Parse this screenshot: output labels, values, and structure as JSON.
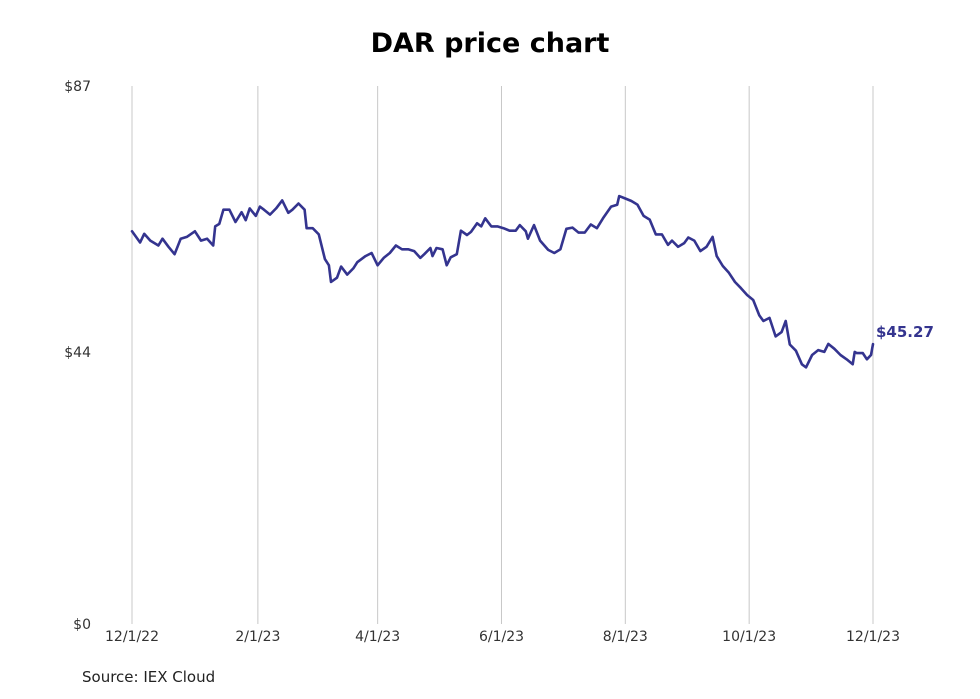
{
  "chart_data": {
    "type": "line",
    "title": "DAR price chart",
    "source": "Source: IEX Cloud",
    "y_ticks": [
      "$87",
      "$44",
      "$0"
    ],
    "y_tick_values": [
      87,
      44,
      0
    ],
    "ylim": [
      0,
      87
    ],
    "x_ticks": [
      "12/1/22",
      "2/1/23",
      "4/1/23",
      "6/1/23",
      "8/1/23",
      "10/1/23",
      "12/1/23"
    ],
    "x_tick_dates": [
      "2022-12-01",
      "2023-02-01",
      "2023-04-01",
      "2023-06-01",
      "2023-08-01",
      "2023-10-01",
      "2023-12-01"
    ],
    "grid": "vertical",
    "last_label": "$45.27",
    "line_color": "#34348f",
    "series": [
      {
        "points": [
          [
            "2022-12-01",
            63.5
          ],
          [
            "2022-12-05",
            61.7
          ],
          [
            "2022-12-07",
            63.1
          ],
          [
            "2022-12-10",
            62.0
          ],
          [
            "2022-12-14",
            61.2
          ],
          [
            "2022-12-16",
            62.3
          ],
          [
            "2022-12-19",
            61.0
          ],
          [
            "2022-12-22",
            59.8
          ],
          [
            "2022-12-25",
            62.3
          ],
          [
            "2022-12-28",
            62.6
          ],
          [
            "2023-01-01",
            63.5
          ],
          [
            "2023-01-04",
            62.0
          ],
          [
            "2023-01-07",
            62.3
          ],
          [
            "2023-01-10",
            61.2
          ],
          [
            "2023-01-11",
            64.3
          ],
          [
            "2023-01-13",
            64.7
          ],
          [
            "2023-01-15",
            67.0
          ],
          [
            "2023-01-18",
            67.0
          ],
          [
            "2023-01-21",
            65.0
          ],
          [
            "2023-01-24",
            66.6
          ],
          [
            "2023-01-26",
            65.3
          ],
          [
            "2023-01-28",
            67.2
          ],
          [
            "2023-01-31",
            66.0
          ],
          [
            "2023-02-02",
            67.5
          ],
          [
            "2023-02-04",
            67.0
          ],
          [
            "2023-02-07",
            66.2
          ],
          [
            "2023-02-10",
            67.2
          ],
          [
            "2023-02-13",
            68.5
          ],
          [
            "2023-02-16",
            66.5
          ],
          [
            "2023-02-18",
            67.0
          ],
          [
            "2023-02-21",
            68.0
          ],
          [
            "2023-02-24",
            67.0
          ],
          [
            "2023-02-25",
            64.0
          ],
          [
            "2023-02-28",
            64.0
          ],
          [
            "2023-03-03",
            63.0
          ],
          [
            "2023-03-06",
            59.0
          ],
          [
            "2023-03-08",
            58.0
          ],
          [
            "2023-03-09",
            55.3
          ],
          [
            "2023-03-12",
            56.0
          ],
          [
            "2023-03-14",
            57.8
          ],
          [
            "2023-03-17",
            56.5
          ],
          [
            "2023-03-20",
            57.5
          ],
          [
            "2023-03-22",
            58.5
          ],
          [
            "2023-03-26",
            59.5
          ],
          [
            "2023-03-29",
            60.0
          ],
          [
            "2023-04-01",
            58.0
          ],
          [
            "2023-04-04",
            59.2
          ],
          [
            "2023-04-07",
            60.0
          ],
          [
            "2023-04-10",
            61.2
          ],
          [
            "2023-04-13",
            60.6
          ],
          [
            "2023-04-16",
            60.6
          ],
          [
            "2023-04-19",
            60.3
          ],
          [
            "2023-04-22",
            59.2
          ],
          [
            "2023-04-24",
            59.8
          ],
          [
            "2023-04-27",
            60.8
          ],
          [
            "2023-04-28",
            59.5
          ],
          [
            "2023-04-30",
            60.8
          ],
          [
            "2023-05-03",
            60.6
          ],
          [
            "2023-05-05",
            58.0
          ],
          [
            "2023-05-07",
            59.3
          ],
          [
            "2023-05-10",
            59.8
          ],
          [
            "2023-05-12",
            63.6
          ],
          [
            "2023-05-15",
            62.9
          ],
          [
            "2023-05-17",
            63.4
          ],
          [
            "2023-05-20",
            64.8
          ],
          [
            "2023-05-22",
            64.3
          ],
          [
            "2023-05-24",
            65.6
          ],
          [
            "2023-05-27",
            64.3
          ],
          [
            "2023-05-30",
            64.3
          ],
          [
            "2023-06-02",
            64.0
          ],
          [
            "2023-06-05",
            63.6
          ],
          [
            "2023-06-08",
            63.6
          ],
          [
            "2023-06-10",
            64.5
          ],
          [
            "2023-06-13",
            63.5
          ],
          [
            "2023-06-14",
            62.3
          ],
          [
            "2023-06-17",
            64.5
          ],
          [
            "2023-06-20",
            62.0
          ],
          [
            "2023-06-24",
            60.5
          ],
          [
            "2023-06-27",
            60.0
          ],
          [
            "2023-06-30",
            60.6
          ],
          [
            "2023-07-03",
            63.9
          ],
          [
            "2023-07-06",
            64.1
          ],
          [
            "2023-07-09",
            63.3
          ],
          [
            "2023-07-12",
            63.3
          ],
          [
            "2023-07-15",
            64.6
          ],
          [
            "2023-07-18",
            64.0
          ],
          [
            "2023-07-21",
            65.6
          ],
          [
            "2023-07-25",
            67.5
          ],
          [
            "2023-07-28",
            67.8
          ],
          [
            "2023-07-29",
            69.2
          ],
          [
            "2023-08-01",
            68.8
          ],
          [
            "2023-08-04",
            68.4
          ],
          [
            "2023-08-07",
            67.8
          ],
          [
            "2023-08-10",
            66.0
          ],
          [
            "2023-08-13",
            65.4
          ],
          [
            "2023-08-16",
            63.0
          ],
          [
            "2023-08-19",
            63.0
          ],
          [
            "2023-08-22",
            61.3
          ],
          [
            "2023-08-24",
            62.0
          ],
          [
            "2023-08-27",
            61.0
          ],
          [
            "2023-08-30",
            61.6
          ],
          [
            "2023-09-01",
            62.5
          ],
          [
            "2023-09-04",
            62.0
          ],
          [
            "2023-09-07",
            60.3
          ],
          [
            "2023-09-10",
            61.0
          ],
          [
            "2023-09-13",
            62.6
          ],
          [
            "2023-09-15",
            59.5
          ],
          [
            "2023-09-18",
            57.9
          ],
          [
            "2023-09-21",
            56.8
          ],
          [
            "2023-09-24",
            55.3
          ],
          [
            "2023-09-27",
            54.3
          ],
          [
            "2023-09-30",
            53.2
          ],
          [
            "2023-10-03",
            52.4
          ],
          [
            "2023-10-06",
            49.9
          ],
          [
            "2023-10-08",
            49.0
          ],
          [
            "2023-10-11",
            49.5
          ],
          [
            "2023-10-14",
            46.5
          ],
          [
            "2023-10-17",
            47.2
          ],
          [
            "2023-10-19",
            49.0
          ],
          [
            "2023-10-21",
            45.2
          ],
          [
            "2023-10-24",
            44.2
          ],
          [
            "2023-10-27",
            42.0
          ],
          [
            "2023-10-29",
            41.5
          ],
          [
            "2023-11-01",
            43.5
          ],
          [
            "2023-11-04",
            44.3
          ],
          [
            "2023-11-07",
            44.0
          ],
          [
            "2023-11-09",
            45.3
          ],
          [
            "2023-11-12",
            44.5
          ],
          [
            "2023-11-15",
            43.5
          ],
          [
            "2023-11-18",
            42.8
          ],
          [
            "2023-11-21",
            42.0
          ],
          [
            "2023-11-22",
            44.0
          ],
          [
            "2023-11-23",
            43.8
          ],
          [
            "2023-11-26",
            43.8
          ],
          [
            "2023-11-28",
            42.8
          ],
          [
            "2023-11-30",
            43.5
          ],
          [
            "2023-12-01",
            45.27
          ]
        ]
      }
    ]
  }
}
